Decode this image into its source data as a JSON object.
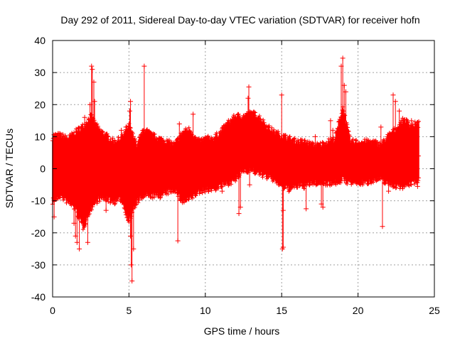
{
  "chart_data": {
    "type": "scatter",
    "title": "Day 292 of 2011, Sidereal Day-to-day VTEC variation (SDTVAR) for receiver hofn",
    "xlabel": "GPS time / hours",
    "ylabel": "SDTVAR / TECUs",
    "xlim": [
      0,
      25
    ],
    "ylim": [
      -40,
      40
    ],
    "xticks": [
      0,
      5,
      10,
      15,
      20,
      25
    ],
    "yticks": [
      -40,
      -30,
      -20,
      -10,
      0,
      10,
      20,
      30,
      40
    ],
    "grid": true,
    "marker": "+",
    "color": "#ff0000",
    "envelope": {
      "x": [
        0,
        0.5,
        1,
        1.5,
        2,
        2.5,
        3,
        3.5,
        4,
        4.5,
        5,
        5.5,
        6,
        6.5,
        7,
        7.5,
        8,
        8.5,
        9,
        9.5,
        10,
        10.5,
        11,
        11.5,
        12,
        12.5,
        13,
        13.5,
        14,
        14.5,
        15,
        15.5,
        16,
        16.5,
        17,
        17.5,
        18,
        18.5,
        19,
        19.5,
        20,
        20.5,
        21,
        21.5,
        22,
        22.5,
        23,
        23.5,
        24
      ],
      "upper": [
        10,
        10,
        9,
        11,
        13,
        16,
        12,
        10,
        8,
        9,
        13,
        7,
        12,
        10,
        9,
        8,
        7,
        11,
        12,
        8,
        9,
        9,
        11,
        14,
        16,
        16,
        17,
        16,
        13,
        11,
        10,
        9,
        8,
        8,
        7,
        7,
        8,
        9,
        19,
        8,
        8,
        8,
        8,
        7,
        10,
        12,
        15,
        13,
        14
      ],
      "lower": [
        -10,
        -8,
        -10,
        -12,
        -18,
        -12,
        -9,
        -9,
        -10,
        -9,
        -16,
        -10,
        -8,
        -8,
        -8,
        -7,
        -6,
        -10,
        -9,
        -7,
        -6,
        -6,
        -5,
        -4,
        -3,
        0,
        0,
        -1,
        -2,
        -3,
        -5,
        -6,
        -5,
        -5,
        -4,
        -4,
        -4,
        -4,
        -3,
        -4,
        -4,
        -4,
        -3,
        -3,
        -4,
        -5,
        -5,
        -4,
        -3
      ]
    },
    "outliers": [
      {
        "x": 0.1,
        "y": -15
      },
      {
        "x": 1.4,
        "y": -17
      },
      {
        "x": 1.5,
        "y": -21
      },
      {
        "x": 1.6,
        "y": -23
      },
      {
        "x": 1.75,
        "y": -25
      },
      {
        "x": 2.1,
        "y": 16
      },
      {
        "x": 2.3,
        "y": -23
      },
      {
        "x": 2.45,
        "y": 20
      },
      {
        "x": 2.55,
        "y": 32
      },
      {
        "x": 2.6,
        "y": 31
      },
      {
        "x": 2.7,
        "y": 27
      },
      {
        "x": 2.75,
        "y": 21
      },
      {
        "x": 3.5,
        "y": -13
      },
      {
        "x": 4.5,
        "y": 12
      },
      {
        "x": 4.8,
        "y": 13
      },
      {
        "x": 5.05,
        "y": 18
      },
      {
        "x": 5.1,
        "y": 21
      },
      {
        "x": 5.1,
        "y": -21
      },
      {
        "x": 5.15,
        "y": -30
      },
      {
        "x": 5.2,
        "y": -35
      },
      {
        "x": 5.3,
        "y": -25
      },
      {
        "x": 6.0,
        "y": 32
      },
      {
        "x": 8.2,
        "y": -22.5
      },
      {
        "x": 8.3,
        "y": 14
      },
      {
        "x": 9.2,
        "y": 17
      },
      {
        "x": 10.2,
        "y": -7
      },
      {
        "x": 11.1,
        "y": -7
      },
      {
        "x": 12.2,
        "y": -14
      },
      {
        "x": 12.3,
        "y": -12
      },
      {
        "x": 12.8,
        "y": 22
      },
      {
        "x": 12.85,
        "y": 25.5
      },
      {
        "x": 12.9,
        "y": -5
      },
      {
        "x": 15.0,
        "y": 23
      },
      {
        "x": 15.05,
        "y": -25
      },
      {
        "x": 15.1,
        "y": -24.5
      },
      {
        "x": 15.1,
        "y": -13
      },
      {
        "x": 16.6,
        "y": -12.5
      },
      {
        "x": 17.2,
        "y": 10
      },
      {
        "x": 17.6,
        "y": -11
      },
      {
        "x": 17.7,
        "y": -12
      },
      {
        "x": 18.2,
        "y": 15
      },
      {
        "x": 18.35,
        "y": 12
      },
      {
        "x": 18.9,
        "y": 32
      },
      {
        "x": 19.0,
        "y": 34.5
      },
      {
        "x": 19.1,
        "y": 26
      },
      {
        "x": 19.2,
        "y": 24
      },
      {
        "x": 21.5,
        "y": 13
      },
      {
        "x": 21.6,
        "y": -18
      },
      {
        "x": 22.0,
        "y": -7
      },
      {
        "x": 22.3,
        "y": 23
      },
      {
        "x": 22.45,
        "y": 21
      },
      {
        "x": 22.7,
        "y": 18
      },
      {
        "x": 23.0,
        "y": -3
      },
      {
        "x": 23.5,
        "y": 15
      },
      {
        "x": 23.9,
        "y": -5.5
      },
      {
        "x": 23.95,
        "y": 4
      }
    ]
  }
}
